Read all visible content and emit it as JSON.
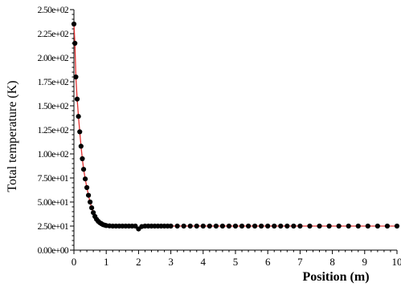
{
  "chart_data": {
    "type": "scatter",
    "title": "",
    "xlabel": "Position (m)",
    "ylabel": "Total temperature (K)",
    "xlim": [
      0,
      10
    ],
    "ylim": [
      0,
      250
    ],
    "grid": false,
    "xticks": [
      0,
      1,
      2,
      3,
      4,
      5,
      6,
      7,
      8,
      9,
      10
    ],
    "xtick_labels": [
      "0",
      "1",
      "2",
      "3",
      "4",
      "5",
      "6",
      "7",
      "8",
      "9",
      "10"
    ],
    "yticks": [
      0,
      25,
      50,
      75,
      100,
      125,
      150,
      175,
      200,
      225,
      250
    ],
    "ytick_labels": [
      "0.00e+00",
      "2.50e+01",
      "5.00e+01",
      "7.50e+01",
      "1.00e+02",
      "1.25e+02",
      "1.50e+02",
      "1.75e+02",
      "2.00e+02",
      "2.25e+02",
      "2.50e+02"
    ],
    "series": [
      {
        "line_color": "#e03030",
        "marker_color": "#000000",
        "x": [
          0.0,
          0.03,
          0.06,
          0.1,
          0.14,
          0.18,
          0.22,
          0.26,
          0.3,
          0.35,
          0.4,
          0.45,
          0.5,
          0.55,
          0.6,
          0.65,
          0.7,
          0.75,
          0.8,
          0.85,
          0.9,
          0.95,
          1.0,
          1.1,
          1.2,
          1.3,
          1.4,
          1.5,
          1.6,
          1.7,
          1.8,
          1.9,
          2.0,
          2.1,
          2.2,
          2.3,
          2.4,
          2.5,
          2.6,
          2.7,
          2.8,
          2.9,
          3.0,
          3.2,
          3.4,
          3.6,
          3.8,
          4.0,
          4.2,
          4.4,
          4.6,
          4.8,
          5.0,
          5.2,
          5.4,
          5.6,
          5.8,
          6.0,
          6.2,
          6.4,
          6.6,
          6.8,
          7.0,
          7.3,
          7.6,
          7.9,
          8.2,
          8.5,
          8.8,
          9.1,
          9.4,
          9.7,
          10.0
        ],
        "y": [
          235,
          215,
          180,
          157,
          139,
          123,
          108,
          95,
          84,
          74,
          65,
          57,
          50,
          44,
          39,
          35,
          32,
          30,
          28.5,
          27.5,
          26.5,
          26,
          25.5,
          25.2,
          25,
          25,
          25,
          25,
          25,
          25,
          25,
          25,
          22,
          24.5,
          25,
          25,
          25,
          25,
          25,
          25,
          25,
          25,
          25,
          25,
          25,
          25,
          25,
          25,
          25,
          25,
          25,
          25,
          25,
          25,
          25,
          25,
          25,
          25,
          25,
          25,
          25,
          25,
          25,
          25,
          25,
          25,
          25,
          25,
          25,
          25,
          25,
          25,
          25
        ]
      }
    ]
  }
}
